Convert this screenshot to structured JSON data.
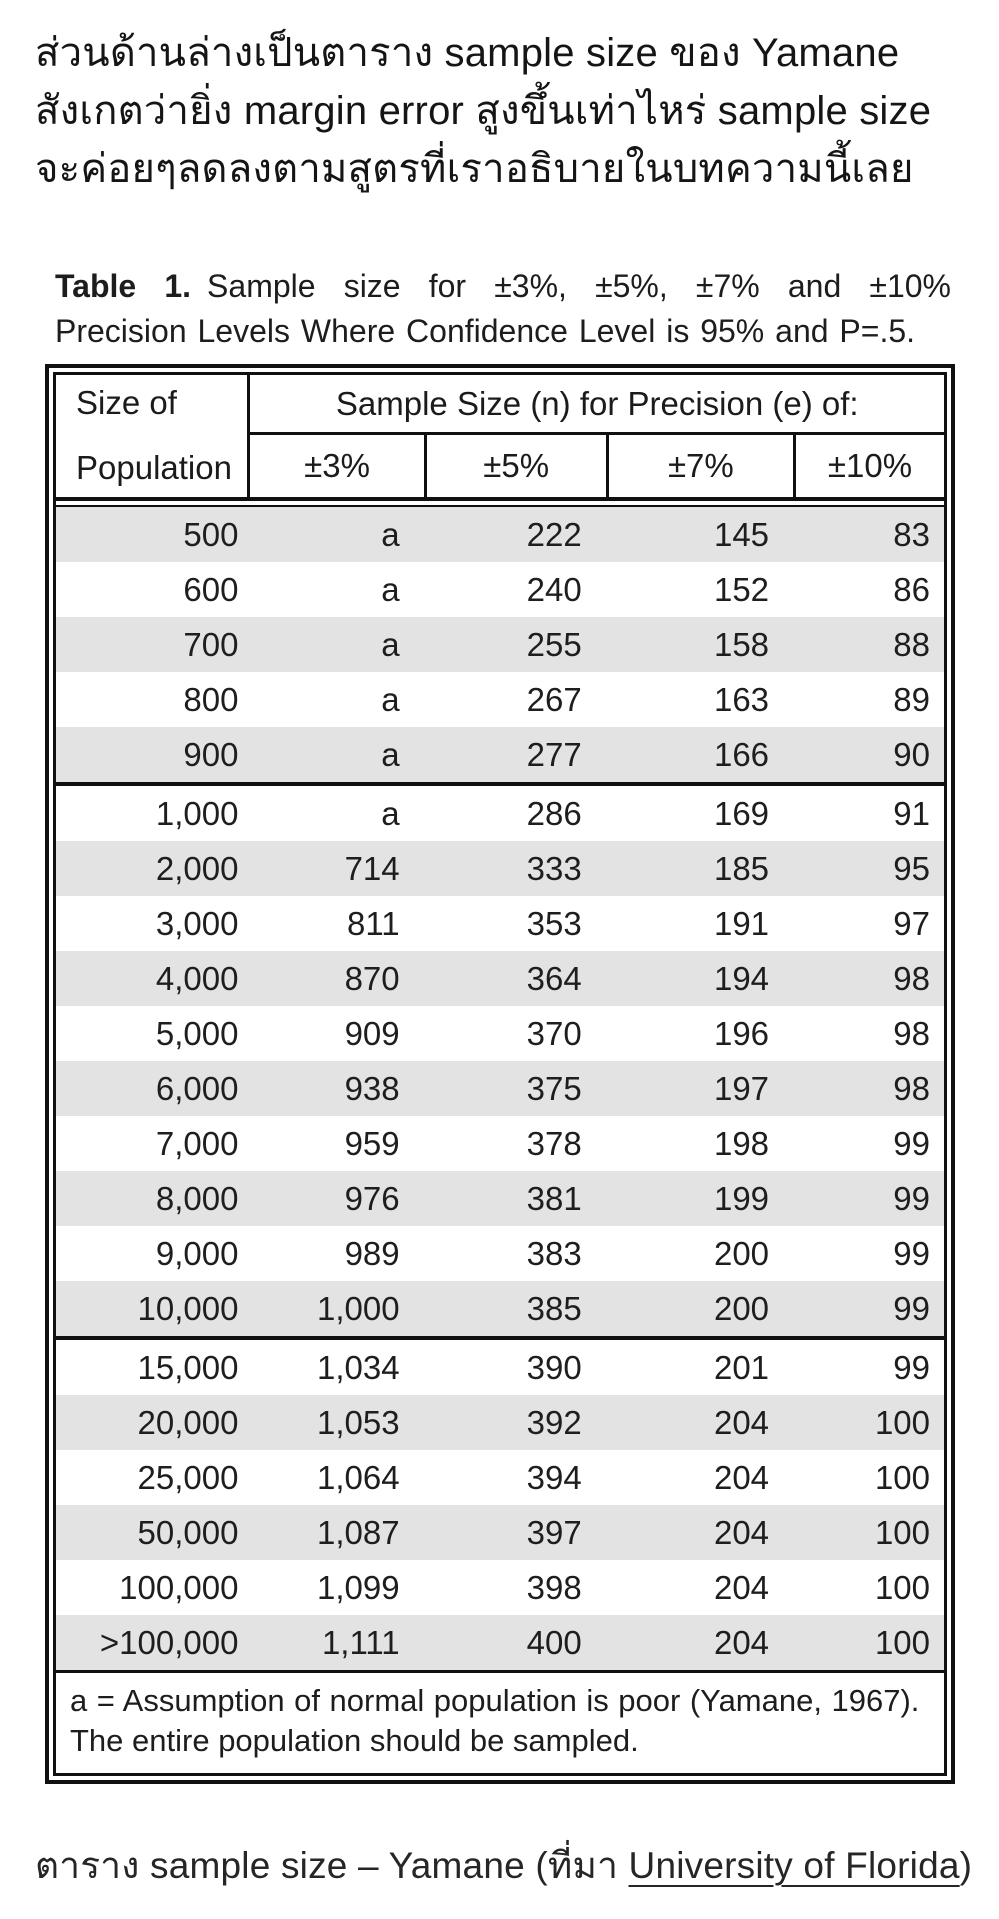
{
  "intro": {
    "lines": [
      "ส่วนด้านล่างเป็นตาราง sample size ของ Yamane",
      "สังเกตว่ายิ่ง margin error สูงขึ้นเท่าไหร่ sample size",
      "จะค่อยๆลดลงตามสูตรที่เราอธิบายในบทความนี้เลย"
    ]
  },
  "figure": {
    "caption": {
      "label": "Table 1.",
      "text": "Sample size for ±3%, ±5%, ±7% and ±10% Precision Levels Where Confidence Level is 95% and P=.5."
    },
    "table": {
      "header": {
        "row_label_line1": "Size of",
        "row_label_line2": "Population",
        "group_label": "Sample Size (n) for Precision (e) of:",
        "precision_columns": [
          "±3%",
          "±5%",
          "±7%",
          "±10%"
        ]
      },
      "sections": [
        {
          "rows": [
            [
              "500",
              "a",
              "222",
              "145",
              "83"
            ],
            [
              "600",
              "a",
              "240",
              "152",
              "86"
            ],
            [
              "700",
              "a",
              "255",
              "158",
              "88"
            ],
            [
              "800",
              "a",
              "267",
              "163",
              "89"
            ],
            [
              "900",
              "a",
              "277",
              "166",
              "90"
            ]
          ]
        },
        {
          "rows": [
            [
              "1,000",
              "a",
              "286",
              "169",
              "91"
            ],
            [
              "2,000",
              "714",
              "333",
              "185",
              "95"
            ],
            [
              "3,000",
              "811",
              "353",
              "191",
              "97"
            ],
            [
              "4,000",
              "870",
              "364",
              "194",
              "98"
            ],
            [
              "5,000",
              "909",
              "370",
              "196",
              "98"
            ],
            [
              "6,000",
              "938",
              "375",
              "197",
              "98"
            ],
            [
              "7,000",
              "959",
              "378",
              "198",
              "99"
            ],
            [
              "8,000",
              "976",
              "381",
              "199",
              "99"
            ],
            [
              "9,000",
              "989",
              "383",
              "200",
              "99"
            ],
            [
              "10,000",
              "1,000",
              "385",
              "200",
              "99"
            ]
          ]
        },
        {
          "rows": [
            [
              "15,000",
              "1,034",
              "390",
              "201",
              "99"
            ],
            [
              "20,000",
              "1,053",
              "392",
              "204",
              "100"
            ],
            [
              "25,000",
              "1,064",
              "394",
              "204",
              "100"
            ],
            [
              "50,000",
              "1,087",
              "397",
              "204",
              "100"
            ],
            [
              "100,000",
              "1,099",
              "398",
              "204",
              "100"
            ],
            [
              ">100,000",
              "1,111",
              "400",
              "204",
              "100"
            ]
          ]
        }
      ],
      "footnote": "a = Assumption of normal population is poor (Yamane, 1967).  The entire population should be sampled."
    }
  },
  "bottom_caption": {
    "prefix": "ตาราง sample size – Yamane (ที่มา ",
    "link": "University of Florida",
    "suffix": ")"
  },
  "colors": {
    "row_shade": "#e3e3e3",
    "border": "#101010",
    "text": "#1b1b1b"
  }
}
